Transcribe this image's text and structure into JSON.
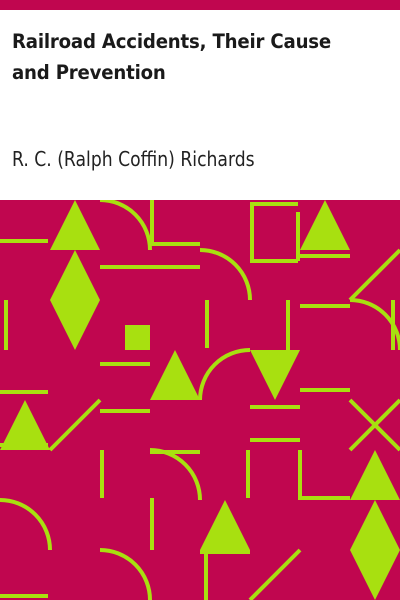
{
  "book": {
    "title": "Railroad Accidents, Their Cause and Prevention",
    "author": "R. C. (Ralph Coffin) Richards"
  },
  "colors": {
    "accent": "#c0064f",
    "pattern_background": "#c0064f",
    "pattern_foreground": "#a8e010",
    "text": "#1a1a1a"
  }
}
